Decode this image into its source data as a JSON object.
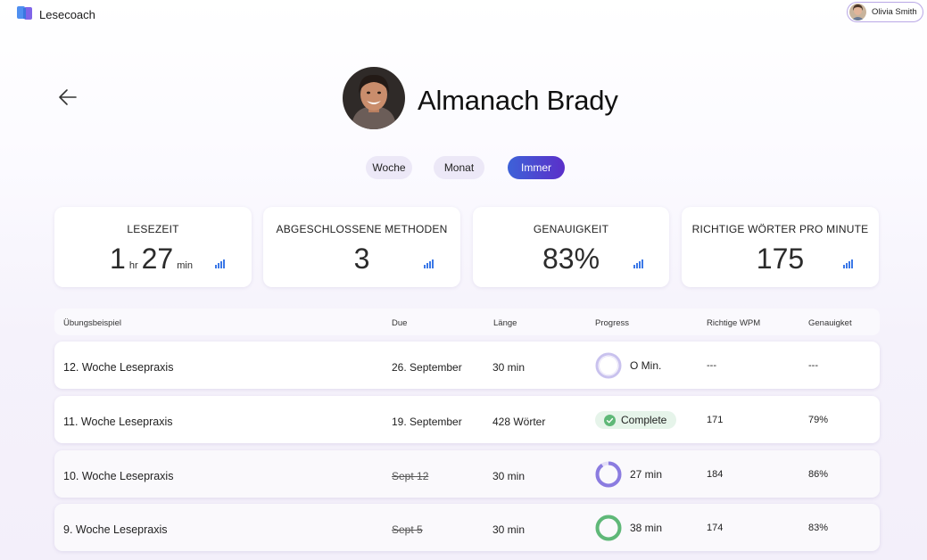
{
  "app": {
    "title": "Lesecoach"
  },
  "user": {
    "name": "Olivia Smith"
  },
  "student": {
    "name": "Almanach Brady"
  },
  "tabs": [
    {
      "label": "Woche",
      "selected": false
    },
    {
      "label": "Monat",
      "selected": false
    },
    {
      "label": "Immer",
      "selected": true
    }
  ],
  "stats": {
    "reading_time": {
      "title": "Lesezeit",
      "hours": "1",
      "hours_unit": "hr",
      "minutes": "27",
      "minutes_unit": "min"
    },
    "completed": {
      "title": "Abgeschlossene Methoden",
      "value": "3"
    },
    "accuracy": {
      "title": "Genauigkeit",
      "value": "83%"
    },
    "wpm": {
      "title": "Richtige Wörter pro Minute",
      "value": "175"
    }
  },
  "table": {
    "headers": {
      "name": "Übungsbeispiel",
      "due": "Due",
      "length": "Länge",
      "progress": "Progress",
      "wpm": "Richtige WPM",
      "accuracy": "Genauigket"
    },
    "rows": [
      {
        "name": "12. Woche Lesepraxis",
        "due": "26. September",
        "length": "30 min",
        "progress": "O Min.",
        "progress_fraction": 0,
        "wpm": "---",
        "accuracy": "---"
      },
      {
        "name": "11. Woche Lesepraxis",
        "due": "19. September",
        "length": "428 Wörter",
        "progress": "Complete",
        "wpm": "171",
        "accuracy": "79%"
      },
      {
        "name": "10. Woche Lesepraxis",
        "due": "Sept 12",
        "length": "30 min",
        "progress": "27 min",
        "progress_fraction": 0.9,
        "wpm": "184",
        "accuracy": "86%"
      },
      {
        "name": "9. Woche Lesepraxis",
        "due": "Sept 5",
        "length": "30 min",
        "progress": "38 min",
        "progress_fraction": 1,
        "wpm": "174",
        "accuracy": "83%"
      }
    ]
  },
  "colors": {
    "accent_start": "#3d62d8",
    "accent_end": "#5b2fc9",
    "ring_purple": "#8b7ce0",
    "ring_green": "#5fb878",
    "complete_bg": "#e6f4ea"
  }
}
